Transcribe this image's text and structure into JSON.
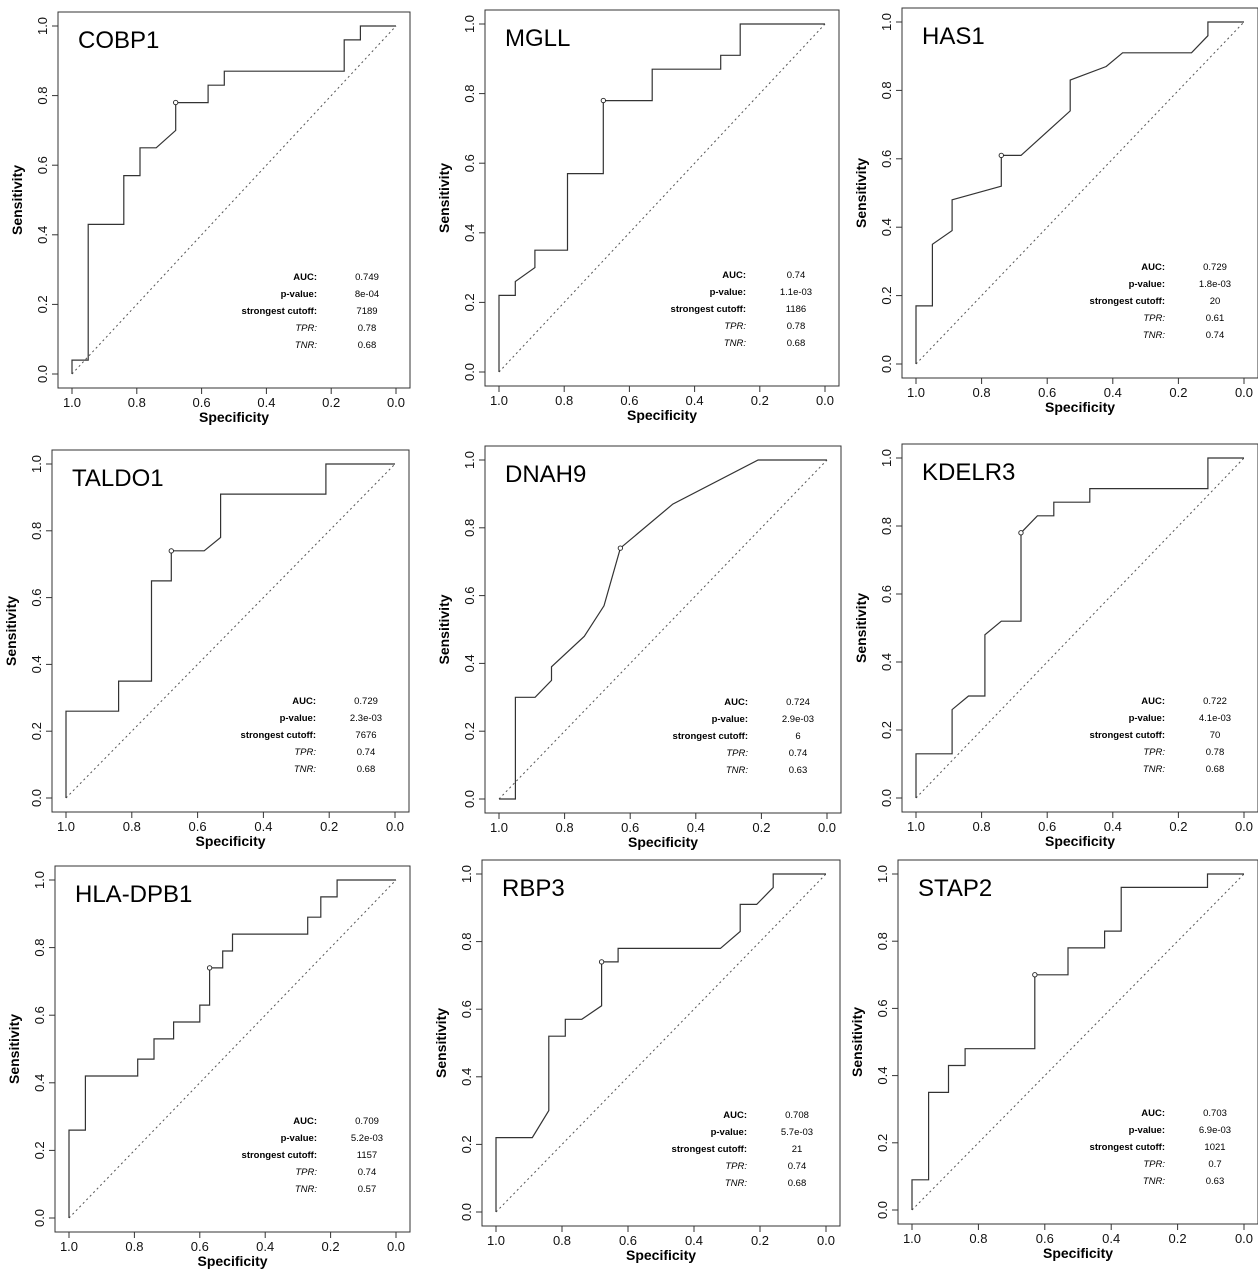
{
  "layout": {
    "xlabel": "Specificity",
    "ylabel": "Sensitivity",
    "ticks": [
      "1.0",
      "0.8",
      "0.6",
      "0.4",
      "0.2",
      "0.0"
    ],
    "y_ticks": [
      "0.0",
      "0.2",
      "0.4",
      "0.6",
      "0.8",
      "1.0"
    ]
  },
  "chart_data": [
    {
      "type": "line",
      "title": "COBP1",
      "xlabel": "Specificity",
      "ylabel": "Sensitivity",
      "xlim": [
        1.0,
        0.0
      ],
      "ylim": [
        0.0,
        1.0
      ],
      "xticks": [
        "1.0",
        "0.8",
        "0.6",
        "0.4",
        "0.2",
        "0.0"
      ],
      "yticks": [
        "0.0",
        "0.2",
        "0.4",
        "0.6",
        "0.8",
        "1.0"
      ],
      "series": [
        {
          "x": [
            1.0,
            1.0,
            0.95,
            0.95,
            0.84,
            0.84,
            0.79,
            0.79,
            0.74,
            0.68,
            0.68,
            0.58,
            0.58,
            0.53,
            0.53,
            0.16,
            0.16,
            0.11,
            0.11,
            0.0
          ],
          "y": [
            0.0,
            0.04,
            0.04,
            0.43,
            0.43,
            0.57,
            0.57,
            0.65,
            0.65,
            0.7,
            0.78,
            0.78,
            0.83,
            0.83,
            0.87,
            0.87,
            0.96,
            0.96,
            1.0,
            1.0
          ]
        }
      ],
      "reference_line": {
        "x": [
          1.0,
          0.0
        ],
        "y": [
          0.0,
          1.0
        ]
      },
      "best_point": {
        "x": 0.68,
        "y": 0.78
      },
      "stats": [
        {
          "label": "AUC:",
          "value": "0.749",
          "italic": false
        },
        {
          "label": "p-value:",
          "value": "8e-04",
          "italic": false
        },
        {
          "label": "strongest cutoff:",
          "value": "7189",
          "italic": false
        },
        {
          "label": "TPR:",
          "value": "0.78",
          "italic": true
        },
        {
          "label": "TNR:",
          "value": "0.68",
          "italic": true
        }
      ]
    },
    {
      "type": "line",
      "title": "MGLL",
      "xlabel": "Specificity",
      "ylabel": "Sensitivity",
      "xlim": [
        1.0,
        0.0
      ],
      "ylim": [
        0.0,
        1.0
      ],
      "xticks": [
        "1.0",
        "0.8",
        "0.6",
        "0.4",
        "0.2",
        "0.0"
      ],
      "yticks": [
        "0.0",
        "0.2",
        "0.4",
        "0.6",
        "0.8",
        "1.0"
      ],
      "series": [
        {
          "x": [
            1.0,
            1.0,
            0.95,
            0.95,
            0.89,
            0.89,
            0.79,
            0.79,
            0.68,
            0.68,
            0.53,
            0.53,
            0.32,
            0.32,
            0.26,
            0.26,
            0.0
          ],
          "y": [
            0.0,
            0.22,
            0.22,
            0.26,
            0.3,
            0.35,
            0.35,
            0.57,
            0.57,
            0.78,
            0.78,
            0.87,
            0.87,
            0.91,
            0.91,
            1.0,
            1.0
          ]
        }
      ],
      "reference_line": {
        "x": [
          1.0,
          0.0
        ],
        "y": [
          0.0,
          1.0
        ]
      },
      "best_point": {
        "x": 0.68,
        "y": 0.78
      },
      "stats": [
        {
          "label": "AUC:",
          "value": "0.74",
          "italic": false
        },
        {
          "label": "p-value:",
          "value": "1.1e-03",
          "italic": false
        },
        {
          "label": "strongest cutoff:",
          "value": "1186",
          "italic": false
        },
        {
          "label": "TPR:",
          "value": "0.78",
          "italic": true
        },
        {
          "label": "TNR:",
          "value": "0.68",
          "italic": true
        }
      ]
    },
    {
      "type": "line",
      "title": "HAS1",
      "xlabel": "Specificity",
      "ylabel": "Sensitivity",
      "xlim": [
        1.0,
        0.0
      ],
      "ylim": [
        0.0,
        1.0
      ],
      "xticks": [
        "1.0",
        "0.8",
        "0.6",
        "0.4",
        "0.2",
        "0.0"
      ],
      "yticks": [
        "0.0",
        "0.2",
        "0.4",
        "0.6",
        "0.8",
        "1.0"
      ],
      "series": [
        {
          "x": [
            1.0,
            1.0,
            0.95,
            0.95,
            0.89,
            0.89,
            0.74,
            0.74,
            0.68,
            0.53,
            0.53,
            0.42,
            0.37,
            0.16,
            0.11,
            0.11,
            0.0
          ],
          "y": [
            0.0,
            0.17,
            0.17,
            0.35,
            0.39,
            0.48,
            0.52,
            0.61,
            0.61,
            0.74,
            0.83,
            0.87,
            0.91,
            0.91,
            0.96,
            1.0,
            1.0
          ]
        }
      ],
      "reference_line": {
        "x": [
          1.0,
          0.0
        ],
        "y": [
          0.0,
          1.0
        ]
      },
      "best_point": {
        "x": 0.74,
        "y": 0.61
      },
      "stats": [
        {
          "label": "AUC:",
          "value": "0.729",
          "italic": false
        },
        {
          "label": "p-value:",
          "value": "1.8e-03",
          "italic": false
        },
        {
          "label": "strongest cutoff:",
          "value": "20",
          "italic": false
        },
        {
          "label": "TPR:",
          "value": "0.61",
          "italic": true
        },
        {
          "label": "TNR:",
          "value": "0.74",
          "italic": true
        }
      ]
    },
    {
      "type": "line",
      "title": "TALDO1",
      "xlabel": "Specificity",
      "ylabel": "Sensitivity",
      "xlim": [
        1.0,
        0.0
      ],
      "ylim": [
        0.0,
        1.0
      ],
      "xticks": [
        "1.0",
        "0.8",
        "0.6",
        "0.4",
        "0.2",
        "0.0"
      ],
      "yticks": [
        "0.0",
        "0.2",
        "0.4",
        "0.6",
        "0.8",
        "1.0"
      ],
      "series": [
        {
          "x": [
            1.0,
            1.0,
            0.84,
            0.84,
            0.74,
            0.74,
            0.68,
            0.68,
            0.58,
            0.53,
            0.53,
            0.21,
            0.21,
            0.0
          ],
          "y": [
            0.0,
            0.26,
            0.26,
            0.35,
            0.35,
            0.65,
            0.65,
            0.74,
            0.74,
            0.78,
            0.91,
            0.91,
            1.0,
            1.0
          ]
        }
      ],
      "reference_line": {
        "x": [
          1.0,
          0.0
        ],
        "y": [
          0.0,
          1.0
        ]
      },
      "best_point": {
        "x": 0.68,
        "y": 0.74
      },
      "stats": [
        {
          "label": "AUC:",
          "value": "0.729",
          "italic": false
        },
        {
          "label": "p-value:",
          "value": "2.3e-03",
          "italic": false
        },
        {
          "label": "strongest cutoff:",
          "value": "7676",
          "italic": false
        },
        {
          "label": "TPR:",
          "value": "0.74",
          "italic": true
        },
        {
          "label": "TNR:",
          "value": "0.68",
          "italic": true
        }
      ]
    },
    {
      "type": "line",
      "title": "DNAH9",
      "xlabel": "Specificity",
      "ylabel": "Sensitivity",
      "xlim": [
        1.0,
        0.0
      ],
      "ylim": [
        0.0,
        1.0
      ],
      "xticks": [
        "1.0",
        "0.8",
        "0.6",
        "0.4",
        "0.2",
        "0.0"
      ],
      "yticks": [
        "0.0",
        "0.2",
        "0.4",
        "0.6",
        "0.8",
        "1.0"
      ],
      "series": [
        {
          "x": [
            1.0,
            0.95,
            0.95,
            0.89,
            0.84,
            0.84,
            0.74,
            0.68,
            0.63,
            0.47,
            0.21,
            0.0
          ],
          "y": [
            0.0,
            0.0,
            0.3,
            0.3,
            0.35,
            0.39,
            0.48,
            0.57,
            0.74,
            0.87,
            1.0,
            1.0
          ]
        }
      ],
      "reference_line": {
        "x": [
          1.0,
          0.0
        ],
        "y": [
          0.0,
          1.0
        ]
      },
      "best_point": {
        "x": 0.63,
        "y": 0.74
      },
      "stats": [
        {
          "label": "AUC:",
          "value": "0.724",
          "italic": false
        },
        {
          "label": "p-value:",
          "value": "2.9e-03",
          "italic": false
        },
        {
          "label": "strongest cutoff:",
          "value": "6",
          "italic": false
        },
        {
          "label": "TPR:",
          "value": "0.74",
          "italic": true
        },
        {
          "label": "TNR:",
          "value": "0.63",
          "italic": true
        }
      ]
    },
    {
      "type": "line",
      "title": "KDELR3",
      "xlabel": "Specificity",
      "ylabel": "Sensitivity",
      "xlim": [
        1.0,
        0.0
      ],
      "ylim": [
        0.0,
        1.0
      ],
      "xticks": [
        "1.0",
        "0.8",
        "0.6",
        "0.4",
        "0.2",
        "0.0"
      ],
      "yticks": [
        "0.0",
        "0.2",
        "0.4",
        "0.6",
        "0.8",
        "1.0"
      ],
      "series": [
        {
          "x": [
            1.0,
            1.0,
            0.89,
            0.89,
            0.84,
            0.79,
            0.79,
            0.74,
            0.68,
            0.68,
            0.63,
            0.58,
            0.58,
            0.47,
            0.47,
            0.11,
            0.11,
            0.0
          ],
          "y": [
            0.0,
            0.13,
            0.13,
            0.26,
            0.3,
            0.3,
            0.48,
            0.52,
            0.52,
            0.78,
            0.83,
            0.83,
            0.87,
            0.87,
            0.91,
            0.91,
            1.0,
            1.0
          ]
        }
      ],
      "reference_line": {
        "x": [
          1.0,
          0.0
        ],
        "y": [
          0.0,
          1.0
        ]
      },
      "best_point": {
        "x": 0.68,
        "y": 0.78
      },
      "stats": [
        {
          "label": "AUC:",
          "value": "0.722",
          "italic": false
        },
        {
          "label": "p-value:",
          "value": "4.1e-03",
          "italic": false
        },
        {
          "label": "strongest cutoff:",
          "value": "70",
          "italic": false
        },
        {
          "label": "TPR:",
          "value": "0.78",
          "italic": true
        },
        {
          "label": "TNR:",
          "value": "0.68",
          "italic": true
        }
      ]
    },
    {
      "type": "line",
      "title": "HLA-DPB1",
      "xlabel": "Specificity",
      "ylabel": "Sensitivity",
      "xlim": [
        1.0,
        0.0
      ],
      "ylim": [
        0.0,
        1.0
      ],
      "xticks": [
        "1.0",
        "0.8",
        "0.6",
        "0.4",
        "0.2",
        "0.0"
      ],
      "yticks": [
        "0.0",
        "0.2",
        "0.4",
        "0.6",
        "0.8",
        "1.0"
      ],
      "series": [
        {
          "x": [
            1.0,
            1.0,
            0.95,
            0.95,
            0.79,
            0.79,
            0.74,
            0.74,
            0.68,
            0.68,
            0.6,
            0.6,
            0.57,
            0.57,
            0.53,
            0.53,
            0.5,
            0.5,
            0.27,
            0.27,
            0.23,
            0.23,
            0.18,
            0.18,
            0.0
          ],
          "y": [
            0.0,
            0.26,
            0.26,
            0.42,
            0.42,
            0.47,
            0.47,
            0.53,
            0.53,
            0.58,
            0.58,
            0.63,
            0.63,
            0.74,
            0.74,
            0.79,
            0.79,
            0.84,
            0.84,
            0.89,
            0.89,
            0.95,
            0.95,
            1.0,
            1.0
          ]
        }
      ],
      "reference_line": {
        "x": [
          1.0,
          0.0
        ],
        "y": [
          0.0,
          1.0
        ]
      },
      "best_point": {
        "x": 0.57,
        "y": 0.74
      },
      "stats": [
        {
          "label": "AUC:",
          "value": "0.709",
          "italic": false
        },
        {
          "label": "p-value:",
          "value": "5.2e-03",
          "italic": false
        },
        {
          "label": "strongest cutoff:",
          "value": "1157",
          "italic": false
        },
        {
          "label": "TPR:",
          "value": "0.74",
          "italic": true
        },
        {
          "label": "TNR:",
          "value": "0.57",
          "italic": true
        }
      ]
    },
    {
      "type": "line",
      "title": "RBP3",
      "xlabel": "Specificity",
      "ylabel": "Sensitivity",
      "xlim": [
        1.0,
        0.0
      ],
      "ylim": [
        0.0,
        1.0
      ],
      "xticks": [
        "1.0",
        "0.8",
        "0.6",
        "0.4",
        "0.2",
        "0.0"
      ],
      "yticks": [
        "0.0",
        "0.2",
        "0.4",
        "0.6",
        "0.8",
        "1.0"
      ],
      "series": [
        {
          "x": [
            1.0,
            1.0,
            0.89,
            0.84,
            0.84,
            0.79,
            0.79,
            0.74,
            0.68,
            0.68,
            0.63,
            0.63,
            0.32,
            0.26,
            0.26,
            0.21,
            0.16,
            0.16,
            0.0
          ],
          "y": [
            0.0,
            0.22,
            0.22,
            0.3,
            0.52,
            0.52,
            0.57,
            0.57,
            0.61,
            0.74,
            0.74,
            0.78,
            0.78,
            0.83,
            0.91,
            0.91,
            0.96,
            1.0,
            1.0
          ]
        }
      ],
      "reference_line": {
        "x": [
          1.0,
          0.0
        ],
        "y": [
          0.0,
          1.0
        ]
      },
      "best_point": {
        "x": 0.68,
        "y": 0.74
      },
      "stats": [
        {
          "label": "AUC:",
          "value": "0.708",
          "italic": false
        },
        {
          "label": "p-value:",
          "value": "5.7e-03",
          "italic": false
        },
        {
          "label": "strongest cutoff:",
          "value": "21",
          "italic": false
        },
        {
          "label": "TPR:",
          "value": "0.74",
          "italic": true
        },
        {
          "label": "TNR:",
          "value": "0.68",
          "italic": true
        }
      ]
    },
    {
      "type": "line",
      "title": "STAP2",
      "xlabel": "Specificity",
      "ylabel": "Sensitivity",
      "xlim": [
        1.0,
        0.0
      ],
      "ylim": [
        0.0,
        1.0
      ],
      "xticks": [
        "1.0",
        "0.8",
        "0.6",
        "0.4",
        "0.2",
        "0.0"
      ],
      "yticks": [
        "0.0",
        "0.2",
        "0.4",
        "0.6",
        "0.8",
        "1.0"
      ],
      "series": [
        {
          "x": [
            1.0,
            1.0,
            0.95,
            0.95,
            0.89,
            0.89,
            0.84,
            0.84,
            0.63,
            0.63,
            0.53,
            0.53,
            0.42,
            0.42,
            0.37,
            0.37,
            0.11,
            0.11,
            0.0
          ],
          "y": [
            0.0,
            0.09,
            0.09,
            0.35,
            0.35,
            0.43,
            0.43,
            0.48,
            0.48,
            0.7,
            0.7,
            0.78,
            0.78,
            0.83,
            0.83,
            0.96,
            0.96,
            1.0,
            1.0
          ]
        }
      ],
      "reference_line": {
        "x": [
          1.0,
          0.0
        ],
        "y": [
          0.0,
          1.0
        ]
      },
      "best_point": {
        "x": 0.63,
        "y": 0.7
      },
      "stats": [
        {
          "label": "AUC:",
          "value": "0.703",
          "italic": false
        },
        {
          "label": "p-value:",
          "value": "6.9e-03",
          "italic": false
        },
        {
          "label": "strongest cutoff:",
          "value": "1021",
          "italic": false
        },
        {
          "label": "TPR:",
          "value": "0.7",
          "italic": true
        },
        {
          "label": "TNR:",
          "value": "0.63",
          "italic": true
        }
      ]
    }
  ]
}
